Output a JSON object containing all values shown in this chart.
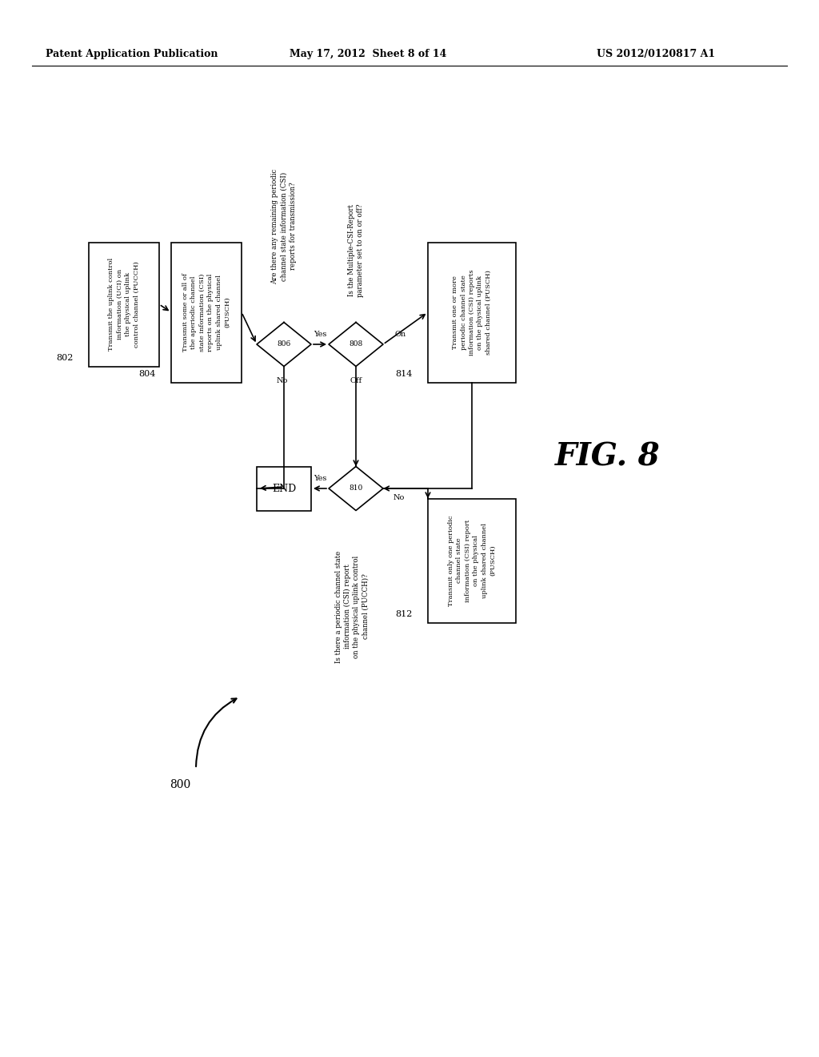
{
  "header_left": "Patent Application Publication",
  "header_center": "May 17, 2012  Sheet 8 of 14",
  "header_right": "US 2012/0120817 A1",
  "bg_color": "#ffffff",
  "fig_label": "FIG. 8",
  "fig_num": "800",
  "box802_text": "Transmit the uplink control information (UCI) on\nthe physical uplink control channel (PUCCH)",
  "box804_text": "Transmit some or all of the aperiodic channel\nstate information (CSI) reports on the physical\nuplink shared channel (PUSCH)",
  "box814_text": "Transmit one or more periodic channel state\ninformation (CSI) reports on the physical uplink\nshared channel (PUSCH)",
  "box812_text": "Transmit only one periodic channel state\ninformation (CSI) report on the physical\nuplink shared channel (PUSCH)",
  "d806_text": "Are there any remaining periodic\nchannel state information (CSI)\nreports for transmission?",
  "d808_text": "Is the Multiple-CSI-Report\nparameter set to on or off?",
  "d810_text": "Is there a periodic channel state\ninformation (CSI) report\non the physical uplink control\nchannel (PUCCH)?",
  "lw": 1.2
}
